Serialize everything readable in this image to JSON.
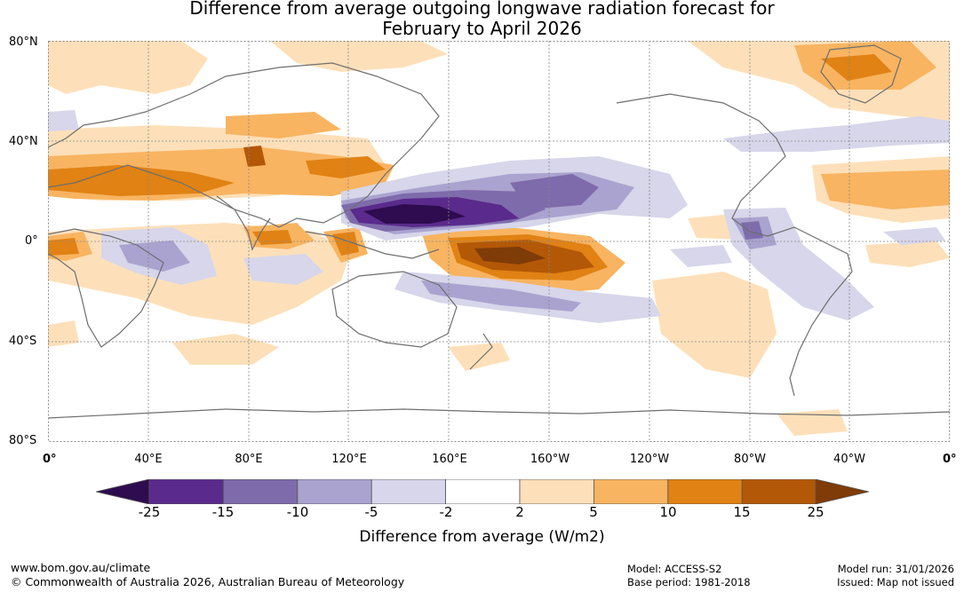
{
  "title": {
    "line1": "Difference from average outgoing longwave radiation forecast for",
    "line2": "February to April 2026"
  },
  "axes": {
    "lat_labels": [
      "80°N",
      "40°N",
      "0°",
      "40°S",
      "80°S"
    ],
    "lon_labels": [
      "0°",
      "40°E",
      "80°E",
      "120°E",
      "160°E",
      "160°W",
      "120°W",
      "80°W",
      "40°W",
      "0°"
    ]
  },
  "legend": {
    "tick_labels": [
      "-25",
      "-15",
      "-10",
      "-5",
      "-2",
      "2",
      "5",
      "10",
      "15",
      "25"
    ],
    "units_label": "Difference from average (W/m2)",
    "colors": [
      "#2e0c4f",
      "#5a2a8c",
      "#7e6bab",
      "#aaa3cf",
      "#d7d6ea",
      "#ffffff",
      "#fde0b9",
      "#f8b461",
      "#e08214",
      "#b35806",
      "#7f3b08"
    ]
  },
  "footer": {
    "website": "www.bom.gov.au/climate",
    "copyright": "© Commonwealth of Australia 2026, Australian Bureau of Meteorology",
    "model": "Model: ACCESS-S2",
    "base_period": "Base period: 1981-2018",
    "model_run": "Model run: 31/01/2026",
    "issued": "Issued: Map not issued"
  }
}
